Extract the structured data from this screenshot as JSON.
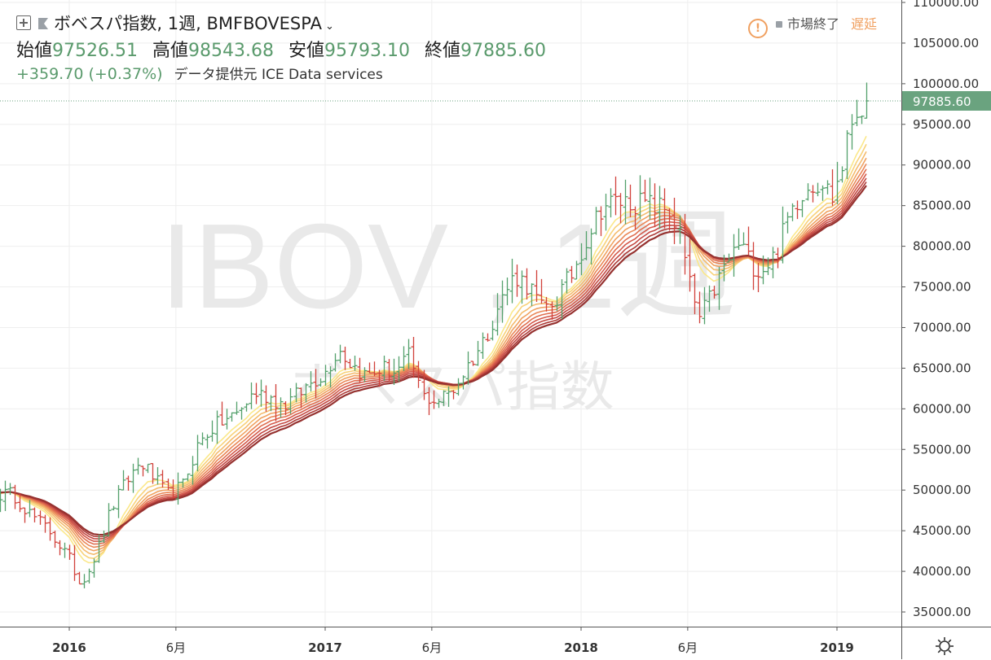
{
  "header": {
    "symbol_title": "ボベスパ指数, 1週, BMFBOVESPA",
    "ohlc": [
      {
        "label": "始値",
        "value": "97526.51"
      },
      {
        "label": "高値",
        "value": "98543.68"
      },
      {
        "label": "安値",
        "value": "95793.10"
      },
      {
        "label": "終値",
        "value": "97885.60"
      }
    ],
    "change": "+359.70 (+0.37%)",
    "data_source": "データ提供元 ICE Data services",
    "market_status": "市場終了",
    "delay_label": "遅延",
    "warn_icon": "!"
  },
  "watermark": {
    "main": "IBOV , 1週",
    "sub": "ボベスパ指数"
  },
  "colors": {
    "up": "#53a06b",
    "down": "#d1413a",
    "last_price_bg": "#6aa37f",
    "warn": "#f0a060",
    "ribbon": [
      "#fbe88a",
      "#f8d27a",
      "#f4bb6d",
      "#f0a261",
      "#ea8757",
      "#e06f50",
      "#d4594a",
      "#c34842",
      "#ad3a37",
      "#963230"
    ]
  },
  "chart_data": {
    "type": "candlestick-ohlc-bar",
    "interval": "weekly",
    "ylim": [
      32000,
      111500
    ],
    "y_ticks": [
      "110000.00",
      "105000.00",
      "100000.00",
      "95000.00",
      "90000.00",
      "85000.00",
      "80000.00",
      "75000.00",
      "70000.00",
      "65000.00",
      "60000.00",
      "55000.00",
      "50000.00",
      "45000.00",
      "40000.00",
      "35000.00"
    ],
    "x_ticks": [
      {
        "label": "2016",
        "t": 0.0,
        "bold": true
      },
      {
        "label": "6月",
        "t": 0.4167,
        "bold": false
      },
      {
        "label": "2017",
        "t": 1.0,
        "bold": true
      },
      {
        "label": "6月",
        "t": 1.4167,
        "bold": false
      },
      {
        "label": "2018",
        "t": 2.0,
        "bold": true
      },
      {
        "label": "6月",
        "t": 2.4167,
        "bold": false
      },
      {
        "label": "2019",
        "t": 3.0,
        "bold": true
      }
    ],
    "last_price": 97885.6,
    "last_price_label": "97885.60",
    "close_keypoints": [
      [
        -0.22,
        49500
      ],
      [
        -0.15,
        47000
      ],
      [
        -0.08,
        45000
      ],
      [
        0.0,
        41500
      ],
      [
        0.04,
        38500
      ],
      [
        0.08,
        40500
      ],
      [
        0.12,
        43500
      ],
      [
        0.16,
        47500
      ],
      [
        0.22,
        51000
      ],
      [
        0.28,
        53500
      ],
      [
        0.33,
        51500
      ],
      [
        0.38,
        49500
      ],
      [
        0.44,
        50500
      ],
      [
        0.5,
        55500
      ],
      [
        0.55,
        57500
      ],
      [
        0.6,
        58500
      ],
      [
        0.66,
        59500
      ],
      [
        0.72,
        62000
      ],
      [
        0.78,
        61500
      ],
      [
        0.84,
        60500
      ],
      [
        0.9,
        62000
      ],
      [
        0.95,
        63500
      ],
      [
        1.0,
        64500
      ],
      [
        1.05,
        67500
      ],
      [
        1.1,
        65500
      ],
      [
        1.16,
        64000
      ],
      [
        1.22,
        65000
      ],
      [
        1.28,
        64500
      ],
      [
        1.33,
        66500
      ],
      [
        1.38,
        61500
      ],
      [
        1.44,
        61000
      ],
      [
        1.5,
        62500
      ],
      [
        1.56,
        65500
      ],
      [
        1.62,
        68500
      ],
      [
        1.68,
        73000
      ],
      [
        1.74,
        76500
      ],
      [
        1.8,
        75000
      ],
      [
        1.85,
        72000
      ],
      [
        1.9,
        73500
      ],
      [
        1.96,
        76500
      ],
      [
        2.02,
        81000
      ],
      [
        2.08,
        85000
      ],
      [
        2.14,
        85500
      ],
      [
        2.2,
        85500
      ],
      [
        2.28,
        85000
      ],
      [
        2.34,
        84500
      ],
      [
        2.38,
        82000
      ],
      [
        2.42,
        75500
      ],
      [
        2.46,
        71000
      ],
      [
        2.5,
        73500
      ],
      [
        2.56,
        77500
      ],
      [
        2.62,
        80500
      ],
      [
        2.66,
        78000
      ],
      [
        2.7,
        77000
      ],
      [
        2.76,
        79000
      ],
      [
        2.82,
        84500
      ],
      [
        2.88,
        87500
      ],
      [
        2.94,
        88000
      ],
      [
        2.98,
        86000
      ],
      [
        3.02,
        90000
      ],
      [
        3.06,
        96000
      ],
      [
        3.1,
        97500
      ],
      [
        3.12,
        97885.6
      ]
    ],
    "ema_ribbon_periods": [
      8,
      10,
      12,
      14,
      16,
      18,
      20,
      22,
      24,
      26
    ]
  },
  "axis_settings_icon": "gear-icon"
}
